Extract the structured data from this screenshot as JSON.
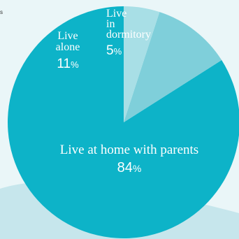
{
  "corner_text": "s",
  "colors": {
    "background": "#eaf6f8",
    "wave": "#c6e6ec",
    "slice_home": "#0db3c8",
    "slice_alone": "#7fcfda",
    "slice_dorm": "#a8dfe6",
    "label": "#ffffff"
  },
  "chart_data": {
    "type": "pie",
    "title": "",
    "start": "top",
    "direction": "counterclockwise",
    "slices": [
      {
        "key": "home",
        "label_lines": [
          "Live at home with parents"
        ],
        "value": 84,
        "display": "84",
        "color": "#0db3c8"
      },
      {
        "key": "alone",
        "label_lines": [
          "Live",
          "alone"
        ],
        "value": 11,
        "display": "11",
        "color": "#7fcfda"
      },
      {
        "key": "dorm",
        "label_lines": [
          "Live",
          "in",
          "dormitory"
        ],
        "value": 5,
        "display": "5",
        "color": "#a8dfe6"
      }
    ],
    "unit": "%"
  }
}
